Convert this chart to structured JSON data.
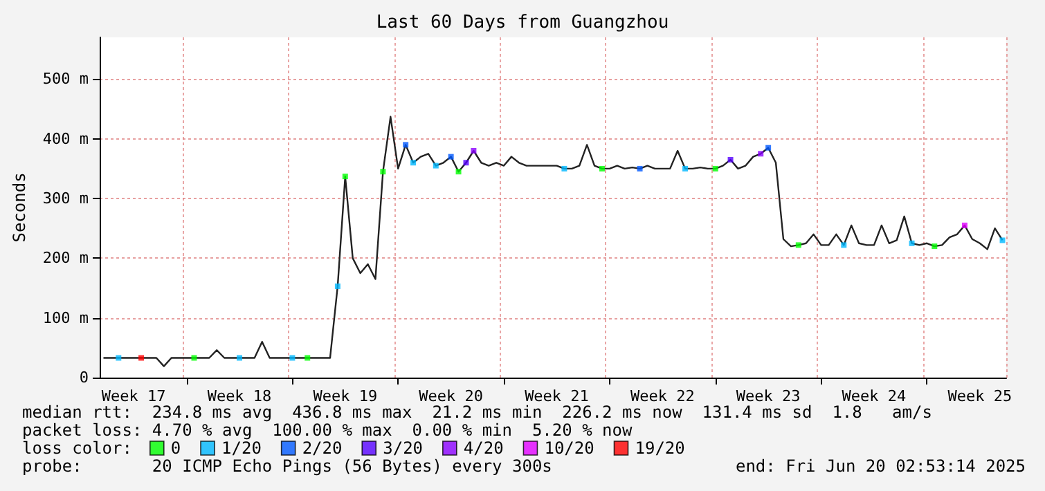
{
  "chart_data": {
    "type": "line",
    "title": "Last 60 Days from Guangzhou",
    "ylabel": "Seconds",
    "categories": [
      null,
      null,
      null,
      null,
      "Week 17",
      null,
      null,
      null,
      null,
      null,
      null,
      null,
      null,
      null,
      null,
      null,
      null,
      null,
      "Week 18",
      null,
      null,
      null,
      null,
      null,
      null,
      null,
      null,
      null,
      null,
      null,
      null,
      null,
      "Week 19",
      null,
      null,
      null,
      null,
      null,
      null,
      null,
      null,
      null,
      null,
      null,
      null,
      null,
      "Week 20",
      null,
      null,
      null,
      null,
      null,
      null,
      null,
      null,
      null,
      null,
      null,
      null,
      null,
      "Week 21",
      null,
      null,
      null,
      null,
      null,
      null,
      null,
      null,
      null,
      null,
      null,
      null,
      null,
      "Week 22",
      null,
      null,
      null,
      null,
      null,
      null,
      null,
      null,
      null,
      null,
      null,
      null,
      null,
      "Week 23",
      null,
      null,
      null,
      null,
      null,
      null,
      null,
      null,
      null,
      null,
      null,
      null,
      null,
      "Week 24",
      null,
      null,
      null,
      null,
      null,
      null,
      null,
      null,
      null,
      null,
      null,
      null,
      null,
      "Week 25",
      null,
      null,
      null
    ],
    "ylim": [
      0,
      570
    ],
    "yticks": [
      0,
      {
        "value": 100,
        "label": "100 m"
      },
      {
        "value": 200,
        "label": "200 m"
      },
      {
        "value": 300,
        "label": "300 m"
      },
      {
        "value": 400,
        "label": "400 m"
      },
      {
        "value": 500,
        "label": "500 m"
      }
    ],
    "grid": true,
    "legend": "bottom",
    "series": [
      {
        "color": "#222222",
        "marker": "none",
        "values": [
          33,
          33,
          33,
          33,
          33,
          33,
          33,
          33,
          19,
          33,
          33,
          33,
          33,
          33,
          33,
          46,
          33,
          33,
          33,
          33,
          33,
          60,
          33,
          33,
          33,
          33,
          33,
          33,
          33,
          33,
          33,
          153,
          337,
          200,
          175,
          190,
          165,
          345,
          437,
          350,
          390,
          360,
          370,
          375,
          355,
          360,
          370,
          345,
          360,
          380,
          360,
          355,
          360,
          355,
          370,
          360,
          355,
          355,
          355,
          355,
          355,
          350,
          350,
          355,
          390,
          355,
          350,
          350,
          355,
          350,
          352,
          350,
          355,
          350,
          350,
          350,
          380,
          350,
          350,
          352,
          350,
          350,
          355,
          365,
          350,
          355,
          370,
          375,
          385,
          360,
          232,
          220,
          222,
          225,
          240,
          222,
          222,
          240,
          222,
          255,
          225,
          222,
          222,
          255,
          225,
          230,
          270,
          225,
          222,
          225,
          220,
          222,
          235,
          240,
          255,
          232,
          225,
          215,
          250,
          230
        ]
      },
      {
        "type": "scatter",
        "name": "0",
        "color": "#00ff00",
        "marker": "square",
        "values": [
          null,
          null,
          null,
          null,
          null,
          null,
          null,
          null,
          null,
          null,
          null,
          null,
          33,
          null,
          null,
          null,
          null,
          null,
          null,
          null,
          null,
          null,
          null,
          null,
          null,
          null,
          null,
          33,
          null,
          null,
          null,
          null,
          337,
          null,
          null,
          null,
          null,
          345,
          null,
          null,
          null,
          null,
          null,
          null,
          null,
          null,
          null,
          345,
          null,
          null,
          null,
          null,
          null,
          null,
          null,
          null,
          null,
          null,
          null,
          null,
          null,
          null,
          null,
          null,
          null,
          null,
          350,
          null,
          null,
          null,
          null,
          null,
          null,
          null,
          null,
          null,
          null,
          null,
          null,
          null,
          null,
          350,
          null,
          null,
          null,
          null,
          null,
          null,
          null,
          null,
          null,
          null,
          222,
          null,
          null,
          null,
          null,
          null,
          null,
          null,
          null,
          null,
          null,
          null,
          null,
          null,
          null,
          null,
          null,
          null,
          220,
          null,
          null,
          null,
          null,
          null,
          null,
          null,
          null,
          null
        ]
      },
      {
        "type": "scatter",
        "name": "1/20",
        "color": "#00b8ff",
        "marker": "square",
        "values": [
          null,
          null,
          33,
          null,
          null,
          null,
          null,
          null,
          null,
          null,
          null,
          null,
          null,
          null,
          null,
          null,
          null,
          null,
          33,
          null,
          null,
          null,
          null,
          null,
          null,
          33,
          null,
          null,
          null,
          null,
          null,
          153,
          null,
          null,
          null,
          null,
          null,
          null,
          null,
          null,
          null,
          360,
          null,
          null,
          355,
          null,
          null,
          null,
          null,
          null,
          null,
          null,
          null,
          null,
          null,
          null,
          null,
          null,
          null,
          null,
          null,
          350,
          null,
          null,
          null,
          null,
          null,
          null,
          null,
          null,
          null,
          null,
          null,
          null,
          null,
          null,
          null,
          350,
          null,
          null,
          null,
          null,
          null,
          null,
          null,
          null,
          null,
          null,
          null,
          null,
          null,
          null,
          null,
          null,
          null,
          null,
          null,
          null,
          222,
          null,
          null,
          null,
          null,
          null,
          null,
          null,
          null,
          225,
          null,
          null,
          null,
          null,
          null,
          null,
          null,
          null,
          null,
          null,
          null,
          230
        ]
      },
      {
        "type": "scatter",
        "name": "2/20",
        "color": "#0059ff",
        "marker": "square",
        "values": [
          null,
          null,
          null,
          null,
          null,
          null,
          null,
          null,
          null,
          null,
          null,
          null,
          null,
          null,
          null,
          null,
          null,
          null,
          null,
          null,
          null,
          null,
          null,
          null,
          null,
          null,
          null,
          null,
          null,
          null,
          null,
          null,
          null,
          null,
          null,
          null,
          null,
          null,
          null,
          null,
          390,
          null,
          null,
          null,
          null,
          null,
          370,
          null,
          null,
          null,
          null,
          null,
          null,
          null,
          null,
          null,
          null,
          null,
          null,
          null,
          null,
          null,
          null,
          null,
          null,
          null,
          null,
          null,
          null,
          null,
          null,
          350,
          null,
          null,
          null,
          null,
          null,
          null,
          null,
          null,
          null,
          null,
          null,
          null,
          null,
          null,
          null,
          null,
          385,
          null,
          null,
          null,
          null,
          null,
          null,
          null,
          null,
          null,
          null,
          null,
          null,
          null,
          null,
          null,
          null,
          null,
          null,
          null,
          null,
          null,
          null,
          null,
          null,
          null,
          null,
          null,
          null,
          null,
          null,
          null
        ]
      },
      {
        "type": "scatter",
        "name": "3/20",
        "color": "#5500ff",
        "marker": "square",
        "values": [
          null,
          null,
          null,
          null,
          null,
          null,
          null,
          null,
          null,
          null,
          null,
          null,
          null,
          null,
          null,
          null,
          null,
          null,
          null,
          null,
          null,
          null,
          null,
          null,
          null,
          null,
          null,
          null,
          null,
          null,
          null,
          null,
          null,
          null,
          null,
          null,
          null,
          null,
          null,
          null,
          null,
          null,
          null,
          null,
          null,
          null,
          null,
          null,
          360,
          null,
          null,
          null,
          null,
          null,
          null,
          null,
          null,
          null,
          null,
          null,
          null,
          null,
          null,
          null,
          null,
          null,
          null,
          null,
          null,
          null,
          null,
          null,
          null,
          null,
          null,
          null,
          null,
          null,
          null,
          null,
          null,
          null,
          null,
          365,
          null,
          null,
          null,
          null,
          null,
          null,
          null,
          null,
          null,
          null,
          null,
          null,
          null,
          null,
          null,
          null,
          null,
          null,
          null,
          null,
          null,
          null,
          null,
          null,
          null,
          null,
          null,
          null,
          null,
          null,
          null,
          null,
          null,
          null,
          null,
          null
        ]
      },
      {
        "type": "scatter",
        "name": "4/20",
        "color": "#8a00ff",
        "marker": "square",
        "values": [
          null,
          null,
          null,
          null,
          null,
          null,
          null,
          null,
          null,
          null,
          null,
          null,
          null,
          null,
          null,
          null,
          null,
          null,
          null,
          null,
          null,
          null,
          null,
          null,
          null,
          null,
          null,
          null,
          null,
          null,
          null,
          null,
          null,
          null,
          null,
          null,
          null,
          null,
          null,
          null,
          null,
          null,
          null,
          null,
          null,
          null,
          null,
          null,
          null,
          380,
          null,
          null,
          null,
          null,
          null,
          null,
          null,
          null,
          null,
          null,
          null,
          null,
          null,
          null,
          null,
          null,
          null,
          null,
          null,
          null,
          null,
          null,
          null,
          null,
          null,
          null,
          null,
          null,
          null,
          null,
          null,
          null,
          null,
          null,
          null,
          null,
          null,
          375,
          null,
          null,
          null,
          null,
          null,
          null,
          null,
          null,
          null,
          null,
          null,
          null,
          null,
          null,
          null,
          null,
          null,
          null,
          null,
          null,
          null,
          null,
          null,
          null,
          null,
          null,
          null,
          null,
          null,
          null,
          null,
          null
        ]
      },
      {
        "type": "scatter",
        "name": "10/20",
        "color": "#e100ff",
        "marker": "square",
        "values": [
          null,
          null,
          null,
          null,
          null,
          null,
          null,
          null,
          null,
          null,
          null,
          null,
          null,
          null,
          null,
          null,
          null,
          null,
          null,
          null,
          null,
          null,
          null,
          null,
          null,
          null,
          null,
          null,
          null,
          null,
          null,
          null,
          null,
          null,
          null,
          null,
          null,
          null,
          null,
          null,
          null,
          null,
          null,
          null,
          null,
          null,
          null,
          null,
          null,
          null,
          null,
          null,
          null,
          null,
          null,
          null,
          null,
          null,
          null,
          null,
          null,
          null,
          null,
          null,
          null,
          null,
          null,
          null,
          null,
          null,
          null,
          null,
          null,
          null,
          null,
          null,
          null,
          null,
          null,
          null,
          null,
          null,
          null,
          null,
          null,
          null,
          null,
          null,
          null,
          null,
          null,
          null,
          null,
          null,
          null,
          null,
          null,
          null,
          null,
          null,
          null,
          null,
          null,
          null,
          null,
          null,
          null,
          null,
          null,
          null,
          null,
          null,
          null,
          null,
          255,
          null,
          null,
          null,
          null,
          null
        ]
      },
      {
        "type": "scatter",
        "name": "19/20",
        "color": "#ff0000",
        "marker": "square",
        "values": [
          null,
          null,
          null,
          null,
          null,
          33,
          null,
          null,
          null,
          null,
          null,
          null,
          null,
          null,
          null,
          null,
          null,
          null,
          null,
          null,
          null,
          null,
          null,
          null,
          null,
          null,
          null,
          null,
          null,
          null,
          null,
          null,
          null,
          null,
          null,
          null,
          null,
          null,
          null,
          null,
          null,
          null,
          null,
          null,
          null,
          null,
          null,
          null,
          null,
          null,
          null,
          null,
          null,
          null,
          null,
          null,
          null,
          null,
          null,
          null,
          null,
          null,
          null,
          null,
          null,
          null,
          null,
          null,
          null,
          null,
          null,
          null,
          null,
          null,
          null,
          null,
          null,
          null,
          null,
          null,
          null,
          null,
          null,
          null,
          null,
          null,
          null,
          null,
          null,
          null,
          null,
          null,
          null,
          null,
          null,
          null,
          null,
          null,
          null,
          null,
          null,
          null,
          null,
          null,
          null,
          null,
          null,
          null,
          null,
          null,
          null,
          null,
          null,
          null,
          null,
          null,
          null,
          null,
          null,
          null
        ]
      }
    ],
    "annotations": [
      "median rtt:  234.8 ms avg  436.8 ms max  21.2 ms min  226.2 ms now  131.4 ms sd  1.8   am/s",
      "packet loss: 4.70 % avg  100.00 % max  0.00 % min  5.20 % now",
      "loss color:",
      "probe:       20 ICMP Echo Pings (56 Bytes) every 300s",
      "end: Fri Jun 20 02:53:14 2025"
    ]
  }
}
